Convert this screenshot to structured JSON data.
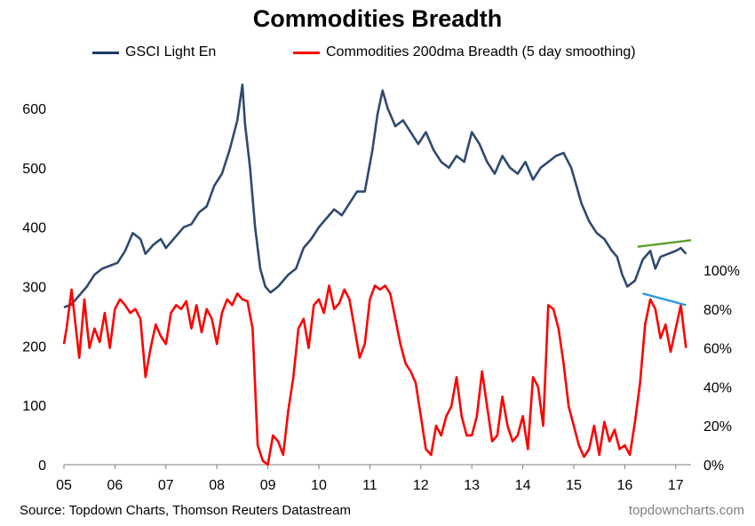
{
  "chart_data": {
    "type": "line",
    "title": "Commodities Breadth",
    "subtitle": "",
    "xlabel": "",
    "ylabel": "",
    "y2label": "",
    "x_tick_labels": [
      "05",
      "06",
      "07",
      "08",
      "09",
      "10",
      "11",
      "12",
      "13",
      "14",
      "15",
      "16",
      "17"
    ],
    "y_left_ticks": [
      0,
      100,
      200,
      300,
      400,
      500,
      600
    ],
    "y_left_tick_labels": [
      "0",
      "100",
      "200",
      "300",
      "400",
      "500",
      "600"
    ],
    "y_right_ticks": [
      0,
      20,
      40,
      60,
      80,
      100
    ],
    "y_right_tick_labels": [
      "0%",
      "20%",
      "40%",
      "60%",
      "80%",
      "100%"
    ],
    "ylim_left": [
      0,
      650
    ],
    "ylim_right": [
      0,
      100
    ],
    "xlim": [
      2005.0,
      2017.3
    ],
    "grid": false,
    "legend_position": "top",
    "series": [
      {
        "name": "GSCI Light En",
        "axis": "left",
        "color": "#2f4a6e",
        "x": [
          2005.0,
          2005.15,
          2005.3,
          2005.45,
          2005.6,
          2005.75,
          2005.9,
          2006.05,
          2006.2,
          2006.35,
          2006.5,
          2006.6,
          2006.75,
          2006.9,
          2007.0,
          2007.2,
          2007.35,
          2007.5,
          2007.65,
          2007.8,
          2007.95,
          2008.1,
          2008.25,
          2008.4,
          2008.5,
          2008.55,
          2008.65,
          2008.75,
          2008.85,
          2008.95,
          2009.05,
          2009.2,
          2009.4,
          2009.55,
          2009.7,
          2009.85,
          2010.0,
          2010.15,
          2010.3,
          2010.45,
          2010.6,
          2010.75,
          2010.9,
          2011.05,
          2011.15,
          2011.25,
          2011.35,
          2011.5,
          2011.65,
          2011.8,
          2011.95,
          2012.1,
          2012.25,
          2012.4,
          2012.55,
          2012.7,
          2012.85,
          2013.0,
          2013.15,
          2013.3,
          2013.45,
          2013.6,
          2013.75,
          2013.9,
          2014.05,
          2014.2,
          2014.35,
          2014.5,
          2014.65,
          2014.8,
          2014.95,
          2015.05,
          2015.15,
          2015.3,
          2015.45,
          2015.6,
          2015.75,
          2015.85,
          2015.95,
          2016.05,
          2016.2,
          2016.35,
          2016.5,
          2016.6,
          2016.7,
          2016.85,
          2017.0,
          2017.1,
          2017.2
        ],
        "values": [
          265,
          270,
          285,
          300,
          320,
          330,
          335,
          340,
          360,
          390,
          380,
          355,
          370,
          380,
          365,
          385,
          400,
          405,
          425,
          435,
          470,
          490,
          530,
          580,
          640,
          575,
          500,
          400,
          330,
          300,
          290,
          300,
          320,
          330,
          365,
          380,
          400,
          415,
          430,
          420,
          440,
          460,
          460,
          530,
          590,
          630,
          600,
          570,
          580,
          560,
          540,
          560,
          530,
          510,
          500,
          520,
          510,
          560,
          540,
          510,
          490,
          520,
          500,
          490,
          510,
          480,
          500,
          510,
          520,
          525,
          500,
          470,
          440,
          410,
          390,
          380,
          360,
          350,
          320,
          300,
          310,
          345,
          360,
          330,
          350,
          355,
          360,
          365,
          355
        ]
      },
      {
        "name": "Commodities 200dma Breadth (5 day smoothing)",
        "axis": "right",
        "color": "#ff0000",
        "x": [
          2005.0,
          2005.05,
          2005.15,
          2005.2,
          2005.3,
          2005.4,
          2005.45,
          2005.5,
          2005.6,
          2005.7,
          2005.8,
          2005.9,
          2006.0,
          2006.1,
          2006.2,
          2006.3,
          2006.4,
          2006.5,
          2006.6,
          2006.7,
          2006.8,
          2006.9,
          2007.0,
          2007.1,
          2007.2,
          2007.3,
          2007.4,
          2007.5,
          2007.6,
          2007.7,
          2007.8,
          2007.9,
          2008.0,
          2008.1,
          2008.2,
          2008.3,
          2008.4,
          2008.5,
          2008.6,
          2008.7,
          2008.8,
          2008.9,
          2009.0,
          2009.1,
          2009.2,
          2009.3,
          2009.4,
          2009.5,
          2009.6,
          2009.7,
          2009.8,
          2009.9,
          2010.0,
          2010.1,
          2010.2,
          2010.3,
          2010.4,
          2010.5,
          2010.6,
          2010.7,
          2010.8,
          2010.9,
          2011.0,
          2011.1,
          2011.2,
          2011.3,
          2011.4,
          2011.5,
          2011.6,
          2011.7,
          2011.8,
          2011.9,
          2012.0,
          2012.1,
          2012.2,
          2012.3,
          2012.4,
          2012.5,
          2012.6,
          2012.7,
          2012.8,
          2012.9,
          2013.0,
          2013.1,
          2013.2,
          2013.3,
          2013.4,
          2013.5,
          2013.6,
          2013.7,
          2013.8,
          2013.9,
          2014.0,
          2014.1,
          2014.2,
          2014.3,
          2014.4,
          2014.5,
          2014.6,
          2014.7,
          2014.8,
          2014.9,
          2015.0,
          2015.1,
          2015.2,
          2015.3,
          2015.4,
          2015.5,
          2015.6,
          2015.7,
          2015.8,
          2015.9,
          2016.0,
          2016.1,
          2016.2,
          2016.3,
          2016.4,
          2016.5,
          2016.6,
          2016.7,
          2016.8,
          2016.9,
          2017.0,
          2017.1,
          2017.2
        ],
        "values": [
          62,
          70,
          90,
          78,
          55,
          85,
          72,
          60,
          70,
          63,
          78,
          60,
          80,
          85,
          82,
          78,
          80,
          75,
          45,
          60,
          72,
          66,
          62,
          78,
          82,
          80,
          84,
          70,
          82,
          68,
          80,
          75,
          62,
          78,
          85,
          82,
          88,
          85,
          84,
          70,
          10,
          2,
          0,
          15,
          12,
          5,
          28,
          45,
          70,
          75,
          60,
          82,
          85,
          78,
          92,
          80,
          83,
          90,
          85,
          70,
          55,
          62,
          85,
          92,
          90,
          92,
          88,
          75,
          62,
          52,
          48,
          42,
          25,
          8,
          5,
          20,
          15,
          25,
          30,
          45,
          25,
          15,
          15,
          25,
          48,
          30,
          12,
          15,
          35,
          20,
          12,
          15,
          25,
          8,
          45,
          40,
          20,
          82,
          80,
          70,
          52,
          30,
          20,
          10,
          4,
          8,
          20,
          5,
          22,
          12,
          18,
          8,
          10,
          5,
          22,
          42,
          72,
          85,
          80,
          65,
          72,
          58,
          70,
          82,
          60
        ]
      }
    ],
    "annotations": [
      {
        "type": "trend-line",
        "color": "#5aa02c",
        "axis": "left",
        "x": [
          2016.25,
          2017.3
        ],
        "values": [
          367,
          378
        ]
      },
      {
        "type": "trend-line",
        "color": "#3399dd",
        "axis": "right",
        "x": [
          2016.35,
          2017.2
        ],
        "values": [
          88,
          82
        ]
      }
    ]
  },
  "legend": {
    "series1": "GSCI Light En",
    "series2": "Commodities 200dma Breadth (5 day smoothing)"
  },
  "footer": {
    "source": "Source: Topdown Charts, Thomson Reuters Datastream",
    "brand": "topdowncharts.com"
  }
}
